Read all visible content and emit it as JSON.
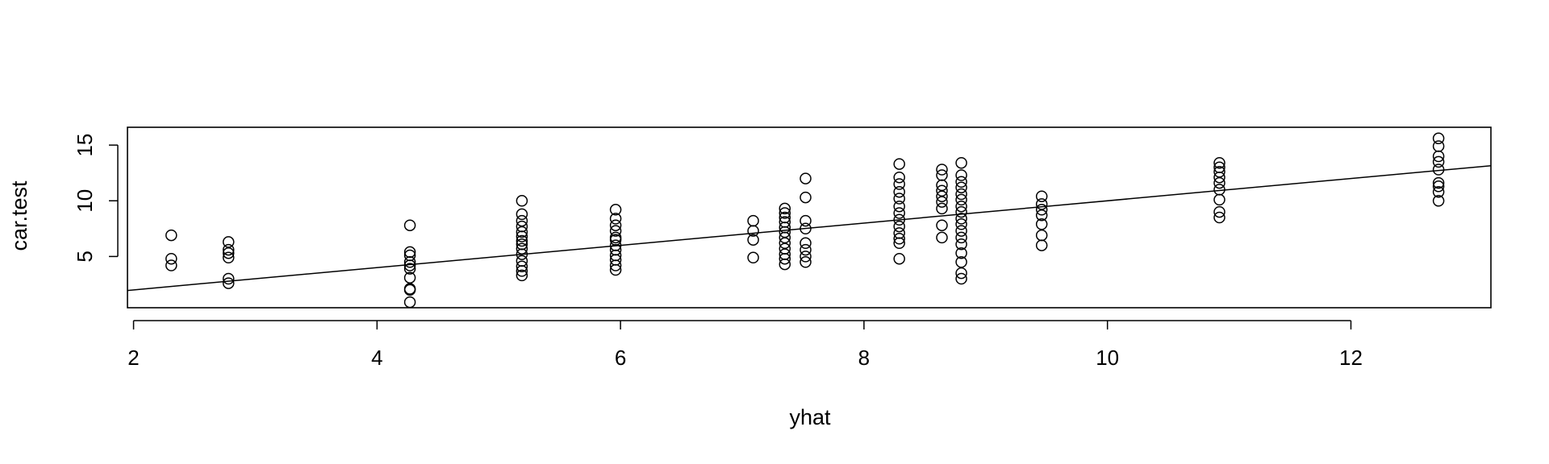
{
  "chart_data": {
    "type": "scatter",
    "title": "",
    "xlabel": "yhat",
    "ylabel": "car.test",
    "xlim": [
      1.95,
      13.15
    ],
    "ylim": [
      0.4,
      16.6
    ],
    "x_ticks": [
      2,
      4,
      6,
      8,
      10,
      12
    ],
    "y_ticks": [
      5,
      10,
      15
    ],
    "grid": false,
    "legend": "none",
    "reference_line": {
      "intercept": 0,
      "slope": 1
    },
    "colors": {
      "points": "#000000",
      "line": "#000000",
      "background": "#ffffff"
    },
    "points": [
      [
        2.31,
        4.2
      ],
      [
        2.31,
        4.8
      ],
      [
        2.31,
        6.9
      ],
      [
        2.78,
        2.6
      ],
      [
        2.78,
        3.0
      ],
      [
        2.78,
        4.9
      ],
      [
        2.78,
        5.3
      ],
      [
        2.78,
        5.6
      ],
      [
        2.78,
        6.3
      ],
      [
        4.27,
        0.9
      ],
      [
        4.27,
        2.0
      ],
      [
        4.27,
        2.1
      ],
      [
        4.27,
        3.1
      ],
      [
        4.27,
        3.9
      ],
      [
        4.27,
        4.2
      ],
      [
        4.27,
        4.5
      ],
      [
        4.27,
        5.1
      ],
      [
        4.27,
        5.4
      ],
      [
        4.27,
        7.8
      ],
      [
        5.19,
        3.3
      ],
      [
        5.19,
        3.7
      ],
      [
        5.19,
        4.1
      ],
      [
        5.19,
        4.6
      ],
      [
        5.19,
        5.2
      ],
      [
        5.19,
        5.7
      ],
      [
        5.19,
        6.1
      ],
      [
        5.19,
        6.4
      ],
      [
        5.19,
        6.8
      ],
      [
        5.19,
        7.2
      ],
      [
        5.19,
        7.7
      ],
      [
        5.19,
        8.2
      ],
      [
        5.19,
        8.8
      ],
      [
        5.19,
        10.0
      ],
      [
        5.96,
        3.8
      ],
      [
        5.96,
        4.2
      ],
      [
        5.96,
        4.7
      ],
      [
        5.96,
        5.1
      ],
      [
        5.96,
        5.6
      ],
      [
        5.96,
        6.0
      ],
      [
        5.96,
        6.5
      ],
      [
        5.96,
        6.7
      ],
      [
        5.96,
        7.3
      ],
      [
        5.96,
        7.8
      ],
      [
        5.96,
        8.4
      ],
      [
        5.96,
        9.2
      ],
      [
        7.09,
        4.9
      ],
      [
        7.09,
        6.5
      ],
      [
        7.09,
        7.3
      ],
      [
        7.09,
        8.2
      ],
      [
        7.35,
        4.3
      ],
      [
        7.35,
        4.8
      ],
      [
        7.35,
        5.2
      ],
      [
        7.35,
        5.7
      ],
      [
        7.35,
        6.2
      ],
      [
        7.35,
        6.7
      ],
      [
        7.35,
        7.2
      ],
      [
        7.35,
        7.6
      ],
      [
        7.35,
        8.1
      ],
      [
        7.35,
        8.5
      ],
      [
        7.35,
        8.9
      ],
      [
        7.35,
        9.3
      ],
      [
        7.52,
        4.5
      ],
      [
        7.52,
        5.0
      ],
      [
        7.52,
        5.6
      ],
      [
        7.52,
        6.2
      ],
      [
        7.52,
        7.5
      ],
      [
        7.52,
        8.2
      ],
      [
        7.52,
        10.3
      ],
      [
        7.52,
        12.0
      ],
      [
        8.29,
        4.8
      ],
      [
        8.29,
        6.2
      ],
      [
        8.29,
        6.6
      ],
      [
        8.29,
        7.1
      ],
      [
        8.29,
        7.7
      ],
      [
        8.29,
        8.3
      ],
      [
        8.29,
        8.9
      ],
      [
        8.29,
        9.5
      ],
      [
        8.29,
        10.2
      ],
      [
        8.29,
        10.8
      ],
      [
        8.29,
        11.5
      ],
      [
        8.29,
        12.1
      ],
      [
        8.29,
        13.3
      ],
      [
        8.64,
        6.7
      ],
      [
        8.64,
        7.8
      ],
      [
        8.64,
        9.3
      ],
      [
        8.64,
        9.9
      ],
      [
        8.64,
        10.4
      ],
      [
        8.64,
        10.9
      ],
      [
        8.64,
        11.4
      ],
      [
        8.64,
        12.3
      ],
      [
        8.64,
        12.8
      ],
      [
        8.8,
        3.0
      ],
      [
        8.8,
        3.5
      ],
      [
        8.8,
        4.5
      ],
      [
        8.8,
        5.3
      ],
      [
        8.8,
        6.1
      ],
      [
        8.8,
        6.7
      ],
      [
        8.8,
        7.3
      ],
      [
        8.8,
        7.9
      ],
      [
        8.8,
        8.4
      ],
      [
        8.8,
        9.0
      ],
      [
        8.8,
        9.5
      ],
      [
        8.8,
        10.1
      ],
      [
        8.8,
        10.6
      ],
      [
        8.8,
        11.2
      ],
      [
        8.8,
        11.7
      ],
      [
        8.8,
        12.3
      ],
      [
        8.8,
        13.4
      ],
      [
        9.46,
        6.0
      ],
      [
        9.46,
        6.9
      ],
      [
        9.46,
        7.9
      ],
      [
        9.46,
        8.7
      ],
      [
        9.46,
        9.2
      ],
      [
        9.46,
        9.7
      ],
      [
        9.46,
        10.4
      ],
      [
        10.92,
        8.5
      ],
      [
        10.92,
        9.0
      ],
      [
        10.92,
        10.1
      ],
      [
        10.92,
        11.0
      ],
      [
        10.92,
        11.6
      ],
      [
        10.92,
        12.1
      ],
      [
        10.92,
        12.6
      ],
      [
        10.92,
        13.0
      ],
      [
        10.92,
        13.4
      ],
      [
        12.72,
        10.0
      ],
      [
        12.72,
        10.8
      ],
      [
        12.72,
        11.3
      ],
      [
        12.72,
        11.6
      ],
      [
        12.72,
        12.8
      ],
      [
        12.72,
        13.5
      ],
      [
        12.72,
        14.0
      ],
      [
        12.72,
        14.9
      ],
      [
        12.72,
        15.6
      ]
    ]
  }
}
